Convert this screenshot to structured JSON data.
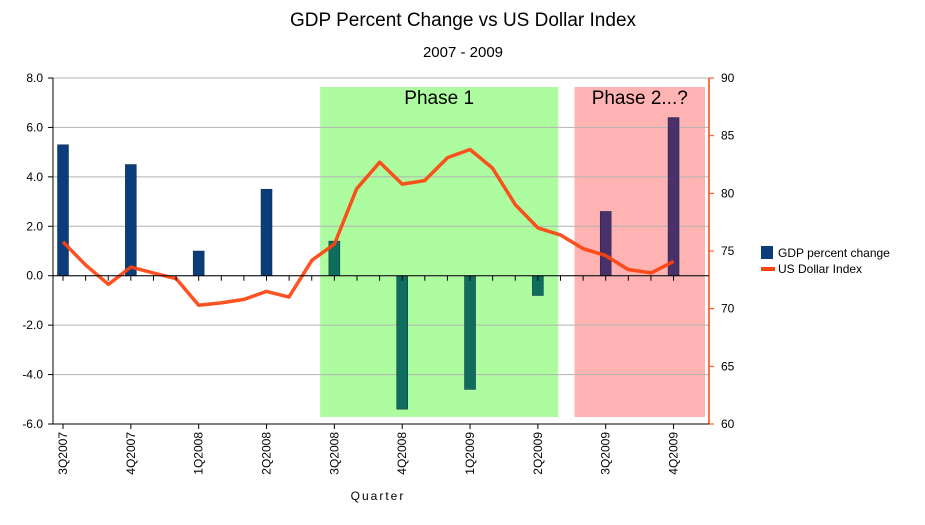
{
  "chart_data": {
    "type": "bar+line",
    "title": "GDP Percent Change vs US Dollar Index",
    "subtitle": "2007 - 2009",
    "xlabel": "Quarter",
    "categories": [
      "3Q2007",
      "4Q2007",
      "1Q2008",
      "2Q2008",
      "3Q2008",
      "4Q2008",
      "1Q2009",
      "2Q2009",
      "3Q2009",
      "4Q2009"
    ],
    "bar_series": {
      "name": "GDP percent change",
      "values": [
        5.3,
        4.5,
        1.0,
        3.5,
        1.4,
        -5.4,
        -4.6,
        -0.8,
        2.6,
        6.4
      ],
      "color": "#0b3d7a",
      "ylim": [
        -6,
        8
      ],
      "yticks": [
        8.0,
        6.0,
        4.0,
        2.0,
        0.0,
        -2.0,
        -4.0,
        -6.0
      ],
      "ytick_labels": [
        "8.0",
        "6.0",
        "4.0",
        "2.0",
        "0.0",
        "-2.0",
        "-4.0",
        "-6.0"
      ]
    },
    "line_series": {
      "name": "US Dollar Index",
      "color": "#ff420e",
      "axis": "right",
      "ylim": [
        60,
        90
      ],
      "yticks": [
        90,
        85,
        80,
        75,
        70,
        65,
        60
      ],
      "ytick_labels": [
        "90",
        "85",
        "80",
        "75",
        "70",
        "65",
        "60"
      ],
      "x_positions": [
        0,
        0.33,
        0.67,
        1,
        1.33,
        1.67,
        2,
        2.33,
        2.67,
        3,
        3.33,
        3.67,
        4,
        4.33,
        4.67,
        5,
        5.33,
        5.67,
        6,
        6.33,
        6.67,
        7,
        7.33,
        7.67,
        8,
        8.33,
        8.67,
        9
      ],
      "values": [
        75.8,
        73.8,
        72.1,
        73.6,
        73.1,
        72.6,
        70.3,
        70.5,
        70.8,
        71.5,
        71.0,
        74.2,
        75.6,
        80.4,
        82.7,
        80.8,
        81.1,
        83.1,
        83.8,
        82.2,
        79.0,
        77.0,
        76.4,
        75.2,
        74.6,
        73.4,
        73.1,
        74.1
      ]
    },
    "annotations": [
      {
        "label": "Phase 1",
        "color": "#adfca0",
        "from_category": "3Q2008",
        "to_category": "2Q2009"
      },
      {
        "label": "Phase 2...?",
        "color": "#ffb3b3",
        "from_category": "3Q2009",
        "to_category": "4Q2009"
      }
    ],
    "legend": {
      "placement": "right"
    },
    "grid": true
  }
}
